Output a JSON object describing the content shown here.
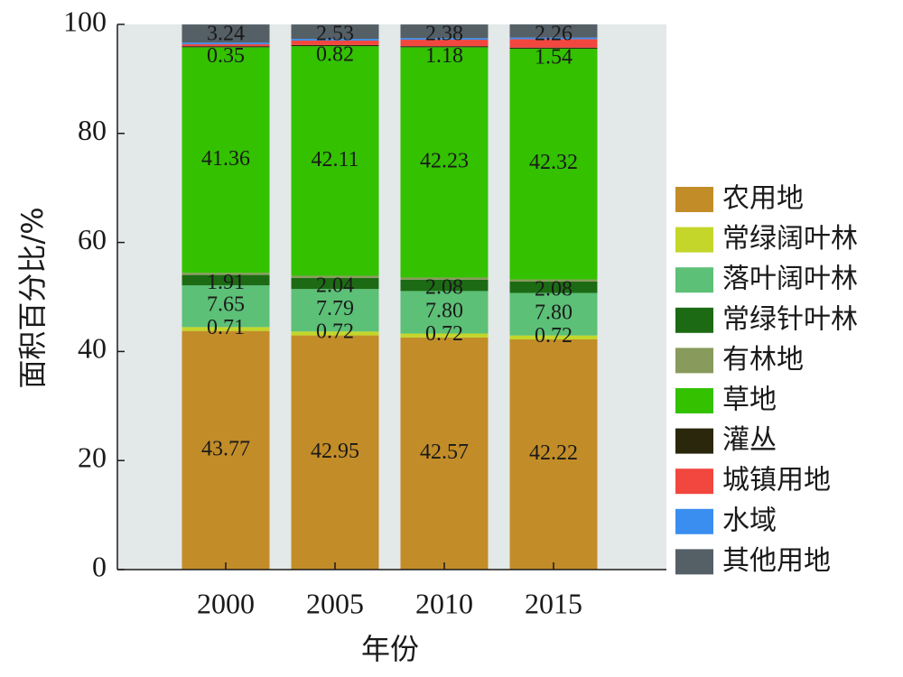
{
  "chart_data": {
    "type": "bar",
    "stacked": true,
    "orientation": "vertical",
    "title": "",
    "xlabel": "年份",
    "ylabel": "面积百分比/%",
    "ylim": [
      0,
      100
    ],
    "yticks": [
      0,
      20,
      40,
      60,
      80,
      100
    ],
    "categories": [
      "2000",
      "2005",
      "2010",
      "2015"
    ],
    "grid": false,
    "plot_background": "#e3e8e8",
    "legend_position": "right",
    "series": [
      {
        "name": "农用地",
        "color": "#c28d28",
        "values": [
          43.77,
          42.95,
          42.57,
          42.22
        ],
        "labels": [
          "43.77",
          "42.95",
          "42.57",
          "42.22"
        ]
      },
      {
        "name": "常绿阔叶林",
        "color": "#c4d62a",
        "values": [
          0.71,
          0.72,
          0.72,
          0.72
        ],
        "labels": [
          "0.71",
          "0.72",
          "0.72",
          "0.72"
        ]
      },
      {
        "name": "落叶阔叶林",
        "color": "#5cc077",
        "values": [
          7.65,
          7.79,
          7.8,
          7.8
        ],
        "labels": [
          "7.65",
          "7.79",
          "7.80",
          "7.80"
        ]
      },
      {
        "name": "常绿针叶林",
        "color": "#1c6b14",
        "values": [
          1.91,
          2.04,
          2.08,
          2.08
        ],
        "labels": [
          "1.91",
          "2.04",
          "2.08",
          "2.08"
        ]
      },
      {
        "name": "有林地",
        "color": "#889b5c",
        "values": [
          0.4,
          0.4,
          0.4,
          0.4
        ],
        "labels": [
          "",
          "",
          "",
          ""
        ]
      },
      {
        "name": "草地",
        "color": "#33c100",
        "values": [
          41.36,
          42.11,
          42.23,
          42.32
        ],
        "labels": [
          "41.36",
          "42.11",
          "42.23",
          "42.32"
        ]
      },
      {
        "name": "灌丛",
        "color": "#2a270c",
        "values": [
          0.2,
          0.2,
          0.2,
          0.2
        ],
        "labels": [
          "",
          "",
          "",
          ""
        ]
      },
      {
        "name": "城镇用地",
        "color": "#f2473f",
        "values": [
          0.35,
          0.82,
          1.18,
          1.54
        ],
        "labels": [
          "0.35",
          "0.82",
          "1.18",
          "1.54"
        ]
      },
      {
        "name": "水域",
        "color": "#3a8ef0",
        "values": [
          0.3,
          0.3,
          0.3,
          0.3
        ],
        "labels": [
          "",
          "",
          "",
          ""
        ]
      },
      {
        "name": "其他用地",
        "color": "#555f66",
        "values": [
          3.24,
          2.53,
          2.38,
          2.26
        ],
        "labels": [
          "3.24",
          "2.53",
          "2.38",
          "2.26"
        ]
      }
    ]
  }
}
